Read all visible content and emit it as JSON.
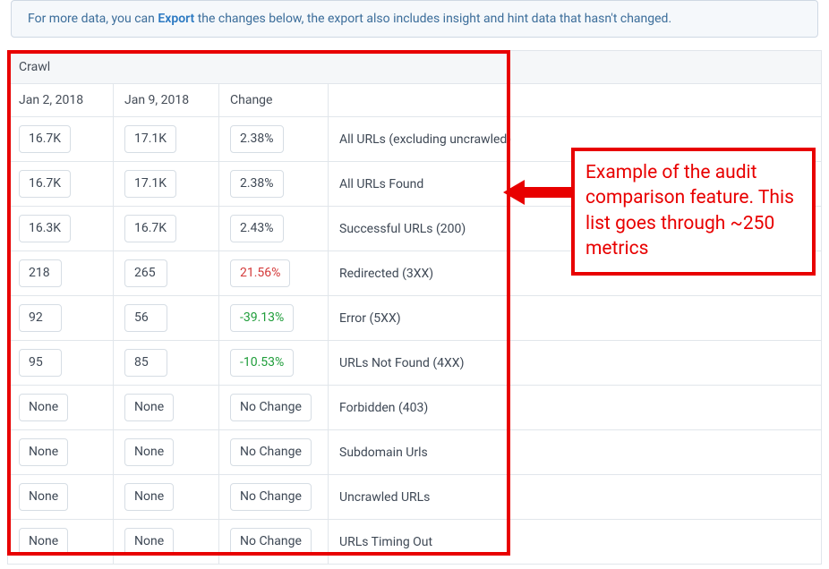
{
  "banner": {
    "prefix": "For more data, you can ",
    "export_label": "Export",
    "suffix": " the changes below, the export also includes insight and hint data that hasn't changed."
  },
  "table": {
    "group_header": "Crawl",
    "columns": {
      "a": "Jan 2, 2018",
      "b": "Jan 9, 2018",
      "c": "Change",
      "d": ""
    },
    "rows": [
      {
        "a": "16.7K",
        "b": "17.1K",
        "change": "2.38%",
        "change_class": "",
        "label": "All URLs (excluding uncrawled)"
      },
      {
        "a": "16.7K",
        "b": "17.1K",
        "change": "2.38%",
        "change_class": "",
        "label": "All URLs Found"
      },
      {
        "a": "16.3K",
        "b": "16.7K",
        "change": "2.43%",
        "change_class": "",
        "label": "Successful URLs (200)"
      },
      {
        "a": "218",
        "b": "265",
        "change": "21.56%",
        "change_class": "neg",
        "label": "Redirected (3XX)"
      },
      {
        "a": "92",
        "b": "56",
        "change": "-39.13%",
        "change_class": "pos",
        "label": "Error (5XX)"
      },
      {
        "a": "95",
        "b": "85",
        "change": "-10.53%",
        "change_class": "pos",
        "label": "URLs Not Found (4XX)"
      },
      {
        "a": "None",
        "b": "None",
        "change": "No Change",
        "change_class": "",
        "label": "Forbidden (403)"
      },
      {
        "a": "None",
        "b": "None",
        "change": "No Change",
        "change_class": "",
        "label": "Subdomain Urls"
      },
      {
        "a": "None",
        "b": "None",
        "change": "No Change",
        "change_class": "",
        "label": "Uncrawled URLs"
      },
      {
        "a": "None",
        "b": "None",
        "change": "No Change",
        "change_class": "",
        "label": "URLs Timing Out"
      }
    ]
  },
  "annotation": {
    "text": "Example of the audit comparison feature. This list goes through ~250 metrics",
    "color": "#e80000"
  }
}
